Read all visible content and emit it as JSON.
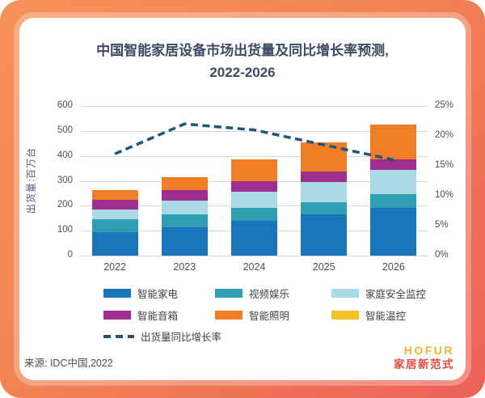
{
  "frame": {
    "gradient_start": "#f79258",
    "gradient_end": "#ec6159",
    "card_bg": "#ffffff"
  },
  "title": {
    "line1": "中国智能家居设备市场出货量及同比增长率预测,",
    "line2": "2022-2026",
    "color": "#3c4b63"
  },
  "chart_data": {
    "type": "bar",
    "subtype": "stacked-bar-with-line",
    "categories": [
      "2022",
      "2023",
      "2024",
      "2025",
      "2026"
    ],
    "series": [
      {
        "name": "智能家电",
        "color": "#1b75bb",
        "values": [
          95,
          115,
          140,
          165,
          190
        ]
      },
      {
        "name": "视频娱乐",
        "color": "#2f9fb3",
        "values": [
          50,
          50,
          50,
          50,
          55
        ]
      },
      {
        "name": "家庭安全监控",
        "color": "#abd9e6",
        "values": [
          40,
          55,
          65,
          80,
          100
        ]
      },
      {
        "name": "智能音箱",
        "color": "#9e2f8f",
        "values": [
          40,
          43,
          44,
          44,
          40
        ]
      },
      {
        "name": "智能照明",
        "color": "#f07e26",
        "values": [
          37,
          52,
          86,
          114,
          142
        ]
      },
      {
        "name": "智能温控",
        "color": "#f3c229",
        "values": [
          0,
          0,
          0,
          0,
          0
        ]
      }
    ],
    "stack_totals": [
      262,
      315,
      385,
      453,
      527
    ],
    "line_series": {
      "name": "出货量同比增长率",
      "color": "#1e5777",
      "style": "dashed",
      "values_pct": [
        17,
        22,
        21,
        18.5,
        16
      ]
    },
    "y_left": {
      "label": "出货量:百万台",
      "min": 0,
      "max": 600,
      "ticks": [
        0,
        100,
        200,
        300,
        400,
        500,
        600
      ]
    },
    "y_right": {
      "min": 0,
      "max": 25,
      "suffix": "%",
      "ticks": [
        0,
        5,
        10,
        15,
        20,
        25
      ]
    },
    "grid": true,
    "grid_color": "#d9d9d9",
    "legend_position": "bottom"
  },
  "source": {
    "text": "来源: IDC中国,2022"
  },
  "logo": {
    "name": "HOFUR",
    "subtitle": "家居新范式",
    "name_color": "#f0b42c",
    "subtitle_color": "#e8483b"
  }
}
